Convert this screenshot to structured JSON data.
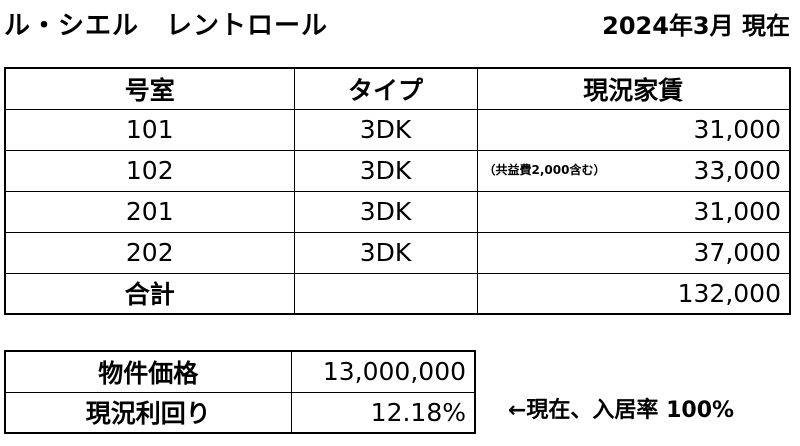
{
  "header": {
    "title": "ル・シエル　レントロール",
    "date": "2024年3月 現在"
  },
  "rent_roll": {
    "columns": [
      "号室",
      "タイプ",
      "現況家賃"
    ],
    "rows": [
      {
        "room": "101",
        "type": "3DK",
        "note": "",
        "rent": "31,000"
      },
      {
        "room": "102",
        "type": "3DK",
        "note": "（共益費2,000含む）",
        "rent": "33,000"
      },
      {
        "room": "201",
        "type": "3DK",
        "note": "",
        "rent": "31,000"
      },
      {
        "room": "202",
        "type": "3DK",
        "note": "",
        "rent": "37,000"
      }
    ],
    "total_label": "合計",
    "total_value": "132,000"
  },
  "investment": {
    "price_label": "物件価格",
    "price_value": "13,000,000",
    "yield_label": "現況利回り",
    "yield_value": "12.18%"
  },
  "side_note": "←現在、入居率 100%"
}
